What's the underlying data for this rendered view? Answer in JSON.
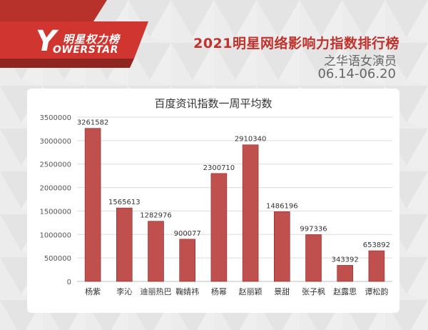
{
  "header": {
    "logo_cn": "明星权力榜",
    "logo_y": "Y",
    "logo_en": "OWERSTAR",
    "title_main": "2021明星网络影响力指数排行榜",
    "title_sub": "之华语女演员",
    "date_range": "06.14-06.20"
  },
  "colors": {
    "brand_red": "#c0322c",
    "bar_fill": "#c0504d",
    "bar_edge": "#8e2a27"
  },
  "chart_data": {
    "type": "bar",
    "title": "百度资讯指数一周平均数",
    "categories": [
      "杨紫",
      "李沁",
      "迪丽热巴",
      "鞠婧祎",
      "杨幂",
      "赵丽颖",
      "景甜",
      "张子枫",
      "赵露思",
      "谭松韵"
    ],
    "values": [
      3261582,
      1565613,
      1282976,
      900077,
      2300710,
      2910340,
      1486196,
      997336,
      343392,
      653892
    ],
    "yticks": [
      "0",
      "500000",
      "1000000",
      "1500000",
      "2000000",
      "2500000",
      "3000000",
      "3500000"
    ],
    "ylim": [
      0,
      3500000
    ],
    "grid": true,
    "xlabel": "",
    "ylabel": ""
  }
}
